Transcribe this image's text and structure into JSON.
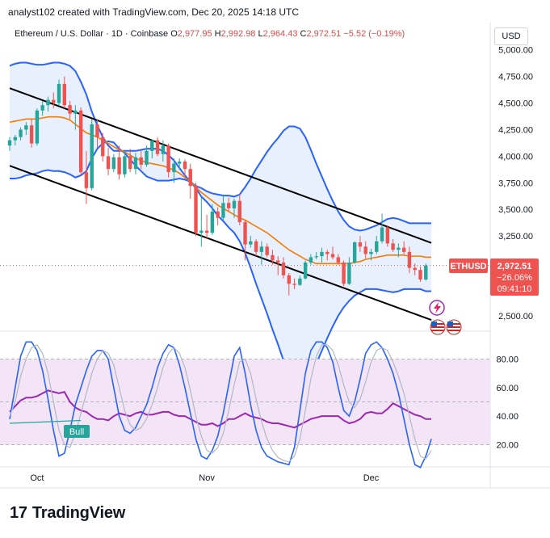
{
  "header": {
    "caption": "analyst102 created with TradingView.com, Dec 20, 2025 14:18 UTC",
    "symbol": "Ethereum / U.S. Dollar · 1D · Coinbase",
    "open_label": "O",
    "open": "2,977.95",
    "high_label": "H",
    "high": "2,992.98",
    "low_label": "L",
    "low": "2,964.43",
    "close_label": "C",
    "close": "2,972.51",
    "change": "−5.52 (−0.19%)",
    "currency_button": "USD"
  },
  "badge": {
    "ticker": "ETHUSD",
    "price": "2,972.51",
    "pct": "−26.06%",
    "countdown": "09:41:10"
  },
  "bull_label": "Bull",
  "footer": {
    "brand": "TradingView",
    "logo_mark": "17"
  },
  "colors": {
    "up": "#26a69a",
    "down": "#ef5350",
    "bollinger": "#2962ff",
    "basis": "#f57c00",
    "channel": "#000000",
    "rsi": "#9c27b0",
    "stoch_k": "#2962ff",
    "stoch_d": "#b0b8c8",
    "band_fill": "#e8f0fd",
    "rsi_fill": "#f3e5f5",
    "bull": "#26a69a"
  },
  "chart_data": [
    {
      "type": "candlestick",
      "title": "Ethereum / U.S. Dollar · 1D · Coinbase",
      "y_ticks": [
        "5,000.00",
        "4,750.00",
        "4,500.00",
        "4,250.00",
        "4,000.00",
        "3,750.00",
        "3,500.00",
        "3,250.00",
        "2,500.00"
      ],
      "x_ticks": [
        {
          "label": "Oct",
          "day": 5
        },
        {
          "label": "Nov",
          "day": 36
        },
        {
          "label": "Dec",
          "day": 66
        }
      ],
      "ylim": [
        2400,
        5150
      ],
      "current_price": 2972.51,
      "candles": [
        [
          4100,
          4180,
          4050,
          4150
        ],
        [
          4150,
          4200,
          4100,
          4180
        ],
        [
          4180,
          4270,
          4150,
          4250
        ],
        [
          4250,
          4320,
          4200,
          4290
        ],
        [
          4290,
          4350,
          4080,
          4120
        ],
        [
          4120,
          4450,
          4100,
          4430
        ],
        [
          4430,
          4520,
          4380,
          4480
        ],
        [
          4480,
          4560,
          4420,
          4530
        ],
        [
          4530,
          4600,
          4450,
          4500
        ],
        [
          4500,
          4720,
          4480,
          4680
        ],
        [
          4680,
          4750,
          4450,
          4480
        ],
        [
          4480,
          4520,
          4350,
          4400
        ],
        [
          4400,
          4480,
          4250,
          4430
        ],
        [
          4430,
          4460,
          3820,
          3850
        ],
        [
          3850,
          4050,
          3550,
          3700
        ],
        [
          3700,
          4350,
          3680,
          4300
        ],
        [
          4300,
          4350,
          4080,
          4180
        ],
        [
          4180,
          4220,
          3950,
          4000
        ],
        [
          4000,
          4080,
          3820,
          3880
        ],
        [
          3880,
          4020,
          3850,
          3990
        ],
        [
          3990,
          4100,
          3780,
          3830
        ],
        [
          3830,
          4050,
          3800,
          4000
        ],
        [
          4000,
          4070,
          3850,
          3880
        ],
        [
          3880,
          4030,
          3830,
          3990
        ],
        [
          3990,
          4050,
          3880,
          3920
        ],
        [
          3920,
          4100,
          3900,
          4050
        ],
        [
          4050,
          4150,
          3980,
          4150
        ],
        [
          4150,
          4180,
          4000,
          4020
        ],
        [
          4020,
          4150,
          3950,
          4100
        ],
        [
          4100,
          4120,
          3800,
          3850
        ],
        [
          3850,
          3980,
          3750,
          3930
        ],
        [
          3930,
          3980,
          3870,
          3950
        ],
        [
          3950,
          3970,
          3820,
          3880
        ],
        [
          3880,
          3930,
          3600,
          3720
        ],
        [
          3720,
          3750,
          3250,
          3280
        ],
        [
          3280,
          3620,
          3150,
          3300
        ],
        [
          3300,
          3450,
          3220,
          3280
        ],
        [
          3280,
          3550,
          3260,
          3480
        ],
        [
          3480,
          3520,
          3350,
          3420
        ],
        [
          3420,
          3640,
          3400,
          3560
        ],
        [
          3560,
          3610,
          3480,
          3510
        ],
        [
          3510,
          3600,
          3420,
          3580
        ],
        [
          3580,
          3650,
          3350,
          3380
        ],
        [
          3380,
          3400,
          3020,
          3170
        ],
        [
          3170,
          3250,
          3140,
          3200
        ],
        [
          3200,
          3220,
          3060,
          3100
        ],
        [
          3100,
          3200,
          2980,
          3150
        ],
        [
          3150,
          3180,
          3050,
          3070
        ],
        [
          3070,
          3120,
          2980,
          3020
        ],
        [
          3020,
          3060,
          2880,
          3000
        ],
        [
          3000,
          3050,
          2850,
          2880
        ],
        [
          2880,
          2900,
          2690,
          2800
        ],
        [
          2800,
          2850,
          2750,
          2790
        ],
        [
          2790,
          2880,
          2780,
          2850
        ],
        [
          2850,
          3020,
          2840,
          3000
        ],
        [
          3000,
          3080,
          2980,
          3050
        ],
        [
          3050,
          3100,
          3030,
          3060
        ],
        [
          3060,
          3140,
          3000,
          3100
        ],
        [
          3100,
          3120,
          3020,
          3080
        ],
        [
          3080,
          3150,
          3030,
          3050
        ],
        [
          3050,
          3080,
          2980,
          3000
        ],
        [
          3000,
          3020,
          2780,
          2800
        ],
        [
          2800,
          3050,
          2790,
          3000
        ],
        [
          3000,
          3200,
          2990,
          3190
        ],
        [
          3190,
          3250,
          3100,
          3150
        ],
        [
          3150,
          3200,
          3040,
          3080
        ],
        [
          3080,
          3130,
          3020,
          3100
        ],
        [
          3100,
          3250,
          3080,
          3200
        ],
        [
          3200,
          3460,
          3180,
          3330
        ],
        [
          3330,
          3350,
          3150,
          3180
        ],
        [
          3180,
          3220,
          3100,
          3120
        ],
        [
          3120,
          3180,
          3050,
          3140
        ],
        [
          3140,
          3200,
          3080,
          3100
        ],
        [
          3100,
          3150,
          2900,
          2950
        ],
        [
          2950,
          2990,
          2880,
          2930
        ],
        [
          2930,
          2960,
          2820,
          2840
        ],
        [
          2840,
          2990,
          2830,
          2972.51
        ]
      ],
      "bollinger_upper": [
        4850,
        4870,
        4880,
        4880,
        4870,
        4860,
        4860,
        4870,
        4880,
        4880,
        4870,
        4850,
        4800,
        4700,
        4580,
        4420,
        4290,
        4180,
        4100,
        4050,
        4050,
        4050,
        4050,
        4050,
        4060,
        4070,
        4070,
        4070,
        4050,
        4010,
        3960,
        3890,
        3820,
        3760,
        3720,
        3700,
        3670,
        3650,
        3640,
        3630,
        3630,
        3620,
        3640,
        3710,
        3790,
        3880,
        3960,
        4040,
        4110,
        4170,
        4240,
        4280,
        4280,
        4260,
        4180,
        4060,
        3930,
        3810,
        3690,
        3580,
        3480,
        3400,
        3340,
        3310,
        3300,
        3310,
        3330,
        3350,
        3380,
        3410,
        3420,
        3410,
        3390,
        3370,
        3370,
        3370,
        3370,
        3370
      ],
      "bollinger_basis": [
        4320,
        4330,
        4340,
        4350,
        4350,
        4350,
        4360,
        4370,
        4370,
        4370,
        4360,
        4340,
        4300,
        4260,
        4220,
        4200,
        4180,
        4150,
        4120,
        4090,
        4060,
        4040,
        4010,
        3980,
        3960,
        3940,
        3930,
        3920,
        3910,
        3890,
        3870,
        3840,
        3800,
        3760,
        3710,
        3660,
        3620,
        3580,
        3540,
        3510,
        3480,
        3450,
        3420,
        3400,
        3370,
        3340,
        3310,
        3280,
        3240,
        3200,
        3160,
        3120,
        3090,
        3060,
        3030,
        3010,
        2990,
        2990,
        2990,
        2990,
        2990,
        2990,
        2990,
        3000,
        3010,
        3030,
        3040,
        3050,
        3060,
        3070,
        3070,
        3070,
        3070,
        3060,
        3060,
        3060,
        3050,
        3050
      ],
      "bollinger_lower": [
        3790,
        3790,
        3800,
        3820,
        3830,
        3840,
        3860,
        3870,
        3860,
        3860,
        3850,
        3830,
        3800,
        3820,
        3860,
        3980,
        4070,
        4120,
        4140,
        4130,
        4070,
        4030,
        3970,
        3910,
        3860,
        3810,
        3790,
        3770,
        3770,
        3770,
        3780,
        3790,
        3780,
        3760,
        3700,
        3620,
        3570,
        3510,
        3440,
        3390,
        3330,
        3280,
        3200,
        3090,
        2950,
        2800,
        2660,
        2520,
        2370,
        2230,
        2080,
        1960,
        1900,
        1860,
        1880,
        1960,
        2050,
        2170,
        2290,
        2400,
        2500,
        2580,
        2640,
        2690,
        2720,
        2750,
        2750,
        2750,
        2740,
        2730,
        2720,
        2730,
        2750,
        2750,
        2750,
        2750,
        2730,
        2730
      ],
      "channel_lines": [
        {
          "name": "upper",
          "from": {
            "day": 0,
            "price": 4640
          },
          "to": {
            "day": 77,
            "price": 3185
          }
        },
        {
          "name": "lower",
          "from": {
            "day": 0,
            "price": 3910
          },
          "to": {
            "day": 77,
            "price": 2460
          }
        }
      ]
    },
    {
      "type": "line",
      "y_ticks": [
        "80.00",
        "60.00",
        "40.00",
        "20.00"
      ],
      "ylim": [
        5,
        95
      ],
      "overbought": 80,
      "oversold": 20,
      "midline": 50,
      "series": [
        {
          "values": [
            43,
            47,
            51,
            53,
            53,
            54,
            56,
            58,
            57,
            56,
            57,
            50,
            46,
            44,
            43,
            40,
            38,
            38,
            37,
            40,
            42,
            41,
            40,
            42,
            43,
            41,
            41,
            42,
            43,
            43,
            41,
            40,
            40,
            38,
            36,
            34,
            34,
            35,
            33,
            35,
            38,
            38,
            40,
            42,
            40,
            39,
            38,
            36,
            35,
            35,
            34,
            33,
            32,
            34,
            36,
            38,
            39,
            40,
            40,
            40,
            40,
            37,
            35,
            36,
            38,
            42,
            43,
            42,
            42,
            45,
            49,
            47,
            45,
            43,
            41,
            40,
            38,
            38
          ]
        },
        {
          "values": [
            38,
            60,
            82,
            92,
            92,
            86,
            72,
            52,
            30,
            12,
            14,
            30,
            48,
            60,
            72,
            82,
            86,
            86,
            80,
            60,
            40,
            30,
            28,
            32,
            40,
            48,
            60,
            74,
            84,
            90,
            88,
            76,
            60,
            42,
            24,
            12,
            10,
            16,
            26,
            42,
            62,
            82,
            88,
            70,
            48,
            30,
            18,
            12,
            10,
            8,
            7,
            6,
            18,
            44,
            70,
            86,
            92,
            92,
            88,
            78,
            60,
            44,
            40,
            50,
            66,
            84,
            90,
            92,
            88,
            80,
            70,
            56,
            38,
            20,
            6,
            4,
            12,
            24
          ]
        },
        {
          "values": [
            40,
            50,
            68,
            80,
            88,
            90,
            84,
            70,
            50,
            30,
            20,
            18,
            28,
            42,
            56,
            70,
            80,
            86,
            84,
            76,
            60,
            44,
            34,
            30,
            32,
            38,
            48,
            60,
            74,
            84,
            88,
            84,
            74,
            58,
            40,
            26,
            16,
            14,
            18,
            28,
            44,
            62,
            78,
            80,
            70,
            52,
            36,
            24,
            16,
            11,
            9,
            8,
            12,
            24,
            44,
            66,
            82,
            90,
            90,
            86,
            76,
            62,
            50,
            46,
            52,
            64,
            78,
            86,
            88,
            86,
            78,
            68,
            56,
            40,
            24,
            12,
            10,
            16
          ]
        }
      ]
    }
  ]
}
